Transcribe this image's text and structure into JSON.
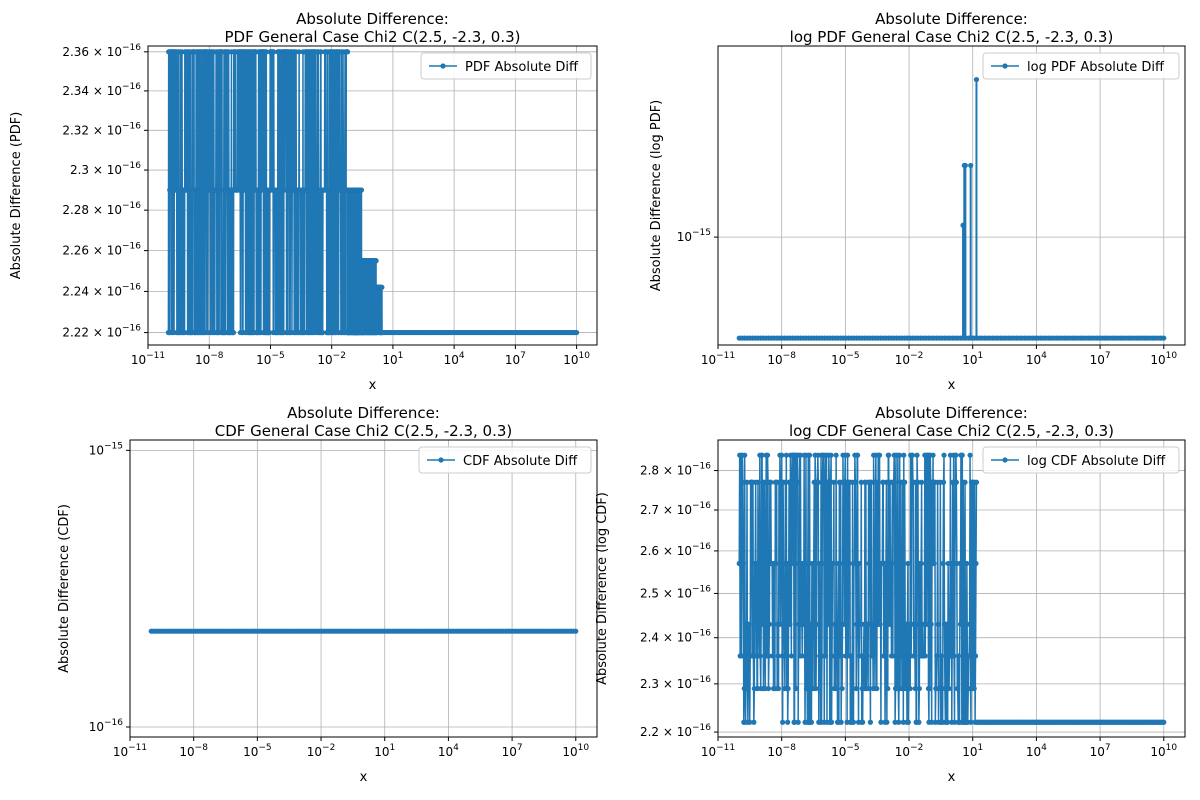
{
  "figure": {
    "line_color": "#1f77b4",
    "grid_color": "#b0b0b0"
  },
  "chart_data": [
    {
      "type": "line",
      "title": "Absolute Difference:\nPDF General Case Chi2 C(2.5, -2.3, 0.3)",
      "xlabel": "x",
      "ylabel": "Absolute Difference (PDF)",
      "xscale": "log",
      "yscale": "log",
      "xlim": [
        1e-11,
        100000000000.0
      ],
      "ylim": [
        2.214e-16,
        2.363e-16
      ],
      "x_ticks": [
        {
          "value": 1e-11,
          "base": "10",
          "exp": "−11"
        },
        {
          "value": 1e-08,
          "base": "10",
          "exp": "−8"
        },
        {
          "value": 1e-05,
          "base": "10",
          "exp": "−5"
        },
        {
          "value": 0.01,
          "base": "10",
          "exp": "−2"
        },
        {
          "value": 10.0,
          "base": "10",
          "exp": "1"
        },
        {
          "value": 10000.0,
          "base": "10",
          "exp": "4"
        },
        {
          "value": 10000000.0,
          "base": "10",
          "exp": "7"
        },
        {
          "value": 10000000000.0,
          "base": "10",
          "exp": "10"
        }
      ],
      "y_ticks": [
        {
          "value": 2.22e-16,
          "mant": "2.22 × 10",
          "exp": "−16"
        },
        {
          "value": 2.24e-16,
          "mant": "2.24 × 10",
          "exp": "−16"
        },
        {
          "value": 2.26e-16,
          "mant": "2.26 × 10",
          "exp": "−16"
        },
        {
          "value": 2.28e-16,
          "mant": "2.28 × 10",
          "exp": "−16"
        },
        {
          "value": 2.3e-16,
          "mant": "2.3 × 10",
          "exp": "−16"
        },
        {
          "value": 2.32e-16,
          "mant": "2.32 × 10",
          "exp": "−16"
        },
        {
          "value": 2.34e-16,
          "mant": "2.34 × 10",
          "exp": "−16"
        },
        {
          "value": 2.36e-16,
          "mant": "2.36 × 10",
          "exp": "−16"
        }
      ],
      "grid": true,
      "legend": {
        "position": "upper right",
        "label": "PDF Absolute Diff"
      },
      "series": [
        {
          "name": "PDF Absolute Diff",
          "segments": [
            {
              "x_range": [
                1e-10,
                0.06
              ],
              "values": [
                2.22e-16,
                2.29e-16,
                2.36e-16
              ]
            },
            {
              "x_range": [
                0.06,
                0.3
              ],
              "values": [
                2.22e-16,
                2.29e-16
              ]
            },
            {
              "x_range": [
                0.3,
                1.5
              ],
              "values": [
                2.22e-16,
                2.255e-16
              ]
            },
            {
              "x_range": [
                1.5,
                3
              ],
              "values": [
                2.22e-16,
                2.242e-16
              ]
            },
            {
              "x_range": [
                3,
                10000000000.0
              ],
              "values": [
                2.22e-16
              ]
            }
          ]
        }
      ]
    },
    {
      "type": "line",
      "title": "Absolute Difference:\nlog PDF General Case Chi2 C(2.5, -2.3, 0.3)",
      "xlabel": "x",
      "ylabel": "Absolute Difference (log PDF)",
      "xscale": "log",
      "yscale": "log",
      "xlim": [
        1e-11,
        100000000000.0
      ],
      "ylim": [
        4.2e-16,
        4.65e-15
      ],
      "x_ticks": [
        {
          "value": 1e-11,
          "base": "10",
          "exp": "−11"
        },
        {
          "value": 1e-08,
          "base": "10",
          "exp": "−8"
        },
        {
          "value": 1e-05,
          "base": "10",
          "exp": "−5"
        },
        {
          "value": 0.01,
          "base": "10",
          "exp": "−2"
        },
        {
          "value": 10.0,
          "base": "10",
          "exp": "1"
        },
        {
          "value": 10000.0,
          "base": "10",
          "exp": "4"
        },
        {
          "value": 10000000.0,
          "base": "10",
          "exp": "7"
        },
        {
          "value": 10000000000.0,
          "base": "10",
          "exp": "10"
        }
      ],
      "y_ticks": [
        {
          "value": 1e-15,
          "mant": "10",
          "exp": "−15"
        }
      ],
      "grid": true,
      "legend": {
        "position": "upper right",
        "label": "log PDF Absolute Diff"
      },
      "series": [
        {
          "name": "log PDF Absolute Diff",
          "baseline": 4.44e-16,
          "x_range": [
            1e-10,
            10000000000.0
          ],
          "spikes": [
            {
              "x": 3.5,
              "value": 1.1e-15
            },
            {
              "x": 4,
              "value": 1.78e-15
            },
            {
              "x": 4.5,
              "value": 1.78e-15
            },
            {
              "x": 8,
              "value": 1.78e-15
            },
            {
              "x": 15,
              "value": 3.55e-15
            }
          ]
        }
      ]
    },
    {
      "type": "line",
      "title": "Absolute Difference:\nCDF General Case Chi2 C(2.5, -2.3, 0.3)",
      "xlabel": "x",
      "ylabel": "Absolute Difference (CDF)",
      "xscale": "log",
      "yscale": "log",
      "xlim": [
        1e-11,
        100000000000.0
      ],
      "ylim": [
        9.2e-17,
        1.09e-15
      ],
      "x_ticks": [
        {
          "value": 1e-11,
          "base": "10",
          "exp": "−11"
        },
        {
          "value": 1e-08,
          "base": "10",
          "exp": "−8"
        },
        {
          "value": 1e-05,
          "base": "10",
          "exp": "−5"
        },
        {
          "value": 0.01,
          "base": "10",
          "exp": "−2"
        },
        {
          "value": 10.0,
          "base": "10",
          "exp": "1"
        },
        {
          "value": 10000.0,
          "base": "10",
          "exp": "4"
        },
        {
          "value": 10000000.0,
          "base": "10",
          "exp": "7"
        },
        {
          "value": 10000000000.0,
          "base": "10",
          "exp": "10"
        }
      ],
      "y_ticks": [
        {
          "value": 1e-16,
          "mant": "10",
          "exp": "−16"
        },
        {
          "value": 1e-15,
          "mant": "10",
          "exp": "−15"
        }
      ],
      "grid": true,
      "legend": {
        "position": "upper right",
        "label": "CDF Absolute Diff"
      },
      "series": [
        {
          "name": "CDF Absolute Diff",
          "x_range": [
            1e-10,
            10000000000.0
          ],
          "values": [
            2.22e-16
          ]
        }
      ]
    },
    {
      "type": "line",
      "title": "Absolute Difference:\nlog CDF General Case Chi2 C(2.5, -2.3, 0.3)",
      "xlabel": "x",
      "ylabel": "Absolute Difference (log CDF)",
      "xscale": "log",
      "yscale": "log",
      "xlim": [
        1e-11,
        100000000000.0
      ],
      "ylim": [
        2.19e-16,
        2.88e-16
      ],
      "x_ticks": [
        {
          "value": 1e-11,
          "base": "10",
          "exp": "−11"
        },
        {
          "value": 1e-08,
          "base": "10",
          "exp": "−8"
        },
        {
          "value": 1e-05,
          "base": "10",
          "exp": "−5"
        },
        {
          "value": 0.01,
          "base": "10",
          "exp": "−2"
        },
        {
          "value": 10.0,
          "base": "10",
          "exp": "1"
        },
        {
          "value": 10000.0,
          "base": "10",
          "exp": "4"
        },
        {
          "value": 10000000.0,
          "base": "10",
          "exp": "7"
        },
        {
          "value": 10000000000.0,
          "base": "10",
          "exp": "10"
        }
      ],
      "y_ticks": [
        {
          "value": 2.2e-16,
          "mant": "2.2 × 10",
          "exp": "−16"
        },
        {
          "value": 2.3e-16,
          "mant": "2.3 × 10",
          "exp": "−16"
        },
        {
          "value": 2.4e-16,
          "mant": "2.4 × 10",
          "exp": "−16"
        },
        {
          "value": 2.5e-16,
          "mant": "2.5 × 10",
          "exp": "−16"
        },
        {
          "value": 2.6e-16,
          "mant": "2.6 × 10",
          "exp": "−16"
        },
        {
          "value": 2.7e-16,
          "mant": "2.7 × 10",
          "exp": "−16"
        },
        {
          "value": 2.8e-16,
          "mant": "2.8 × 10",
          "exp": "−16"
        }
      ],
      "grid": true,
      "legend": {
        "position": "upper right",
        "label": "log CDF Absolute Diff"
      },
      "series": [
        {
          "name": "log CDF Absolute Diff",
          "segments": [
            {
              "x_range": [
                1e-10,
                15
              ],
              "values": [
                2.22e-16,
                2.29e-16,
                2.36e-16,
                2.43e-16,
                2.57e-16,
                2.77e-16,
                2.84e-16
              ]
            },
            {
              "x_range": [
                15,
                10000000000.0
              ],
              "values": [
                2.22e-16
              ]
            }
          ]
        }
      ]
    }
  ]
}
